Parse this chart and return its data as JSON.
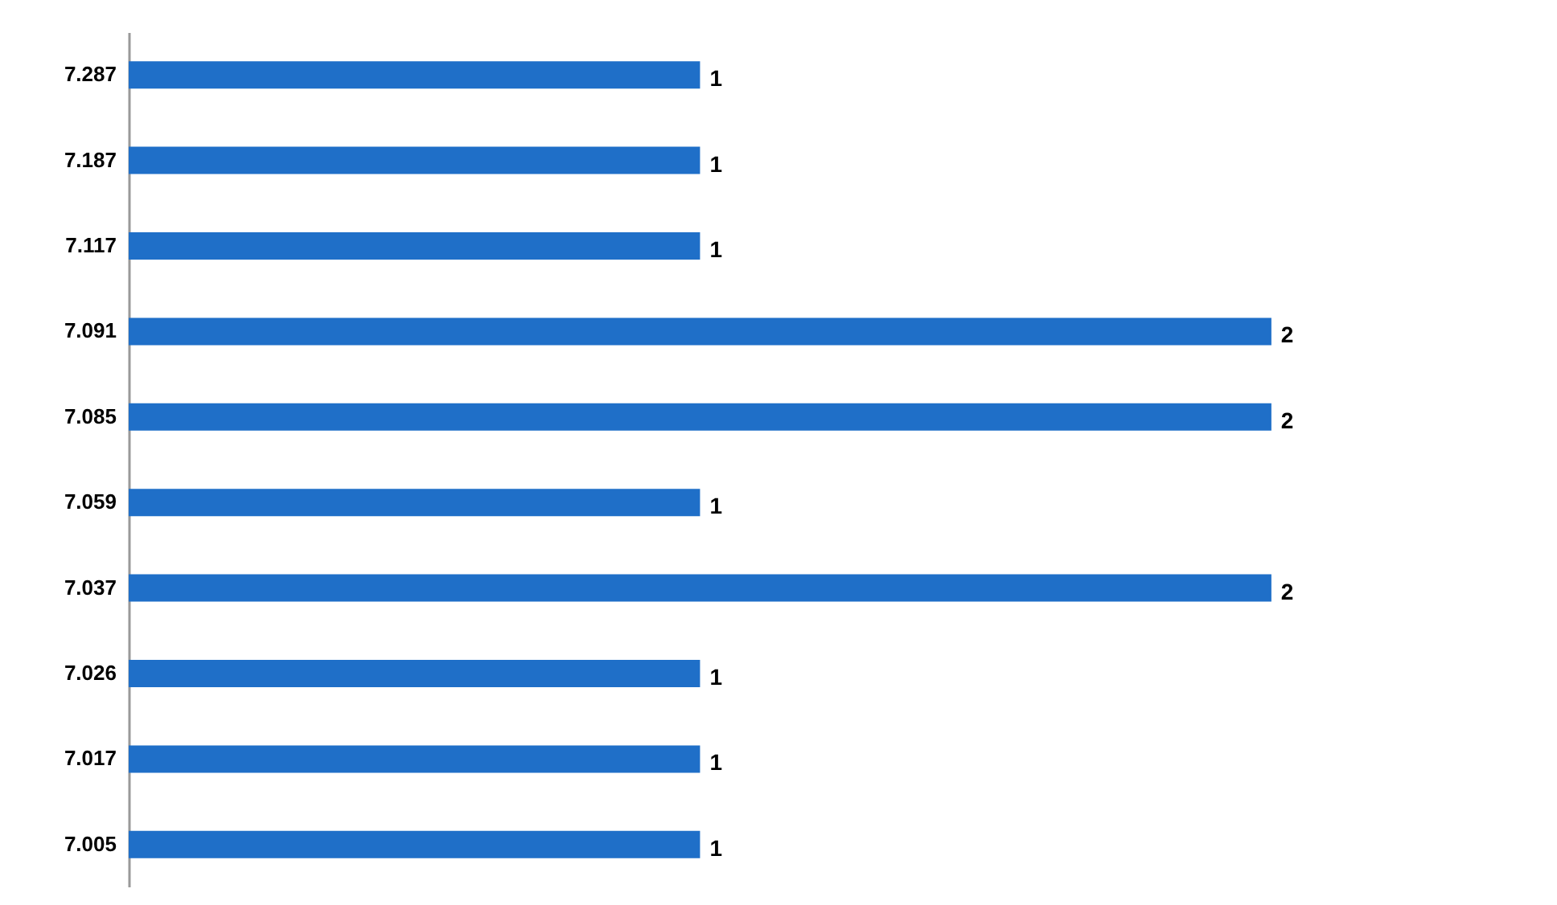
{
  "chart_data": {
    "type": "bar",
    "orientation": "horizontal",
    "categories": [
      "7.287",
      "7.187",
      "7.117",
      "7.091",
      "7.085",
      "7.059",
      "7.037",
      "7.026",
      "7.017",
      "7.005"
    ],
    "values": [
      1,
      1,
      1,
      2,
      2,
      1,
      2,
      1,
      1,
      1
    ],
    "color": "#1f6fc8",
    "data_labels": true
  }
}
